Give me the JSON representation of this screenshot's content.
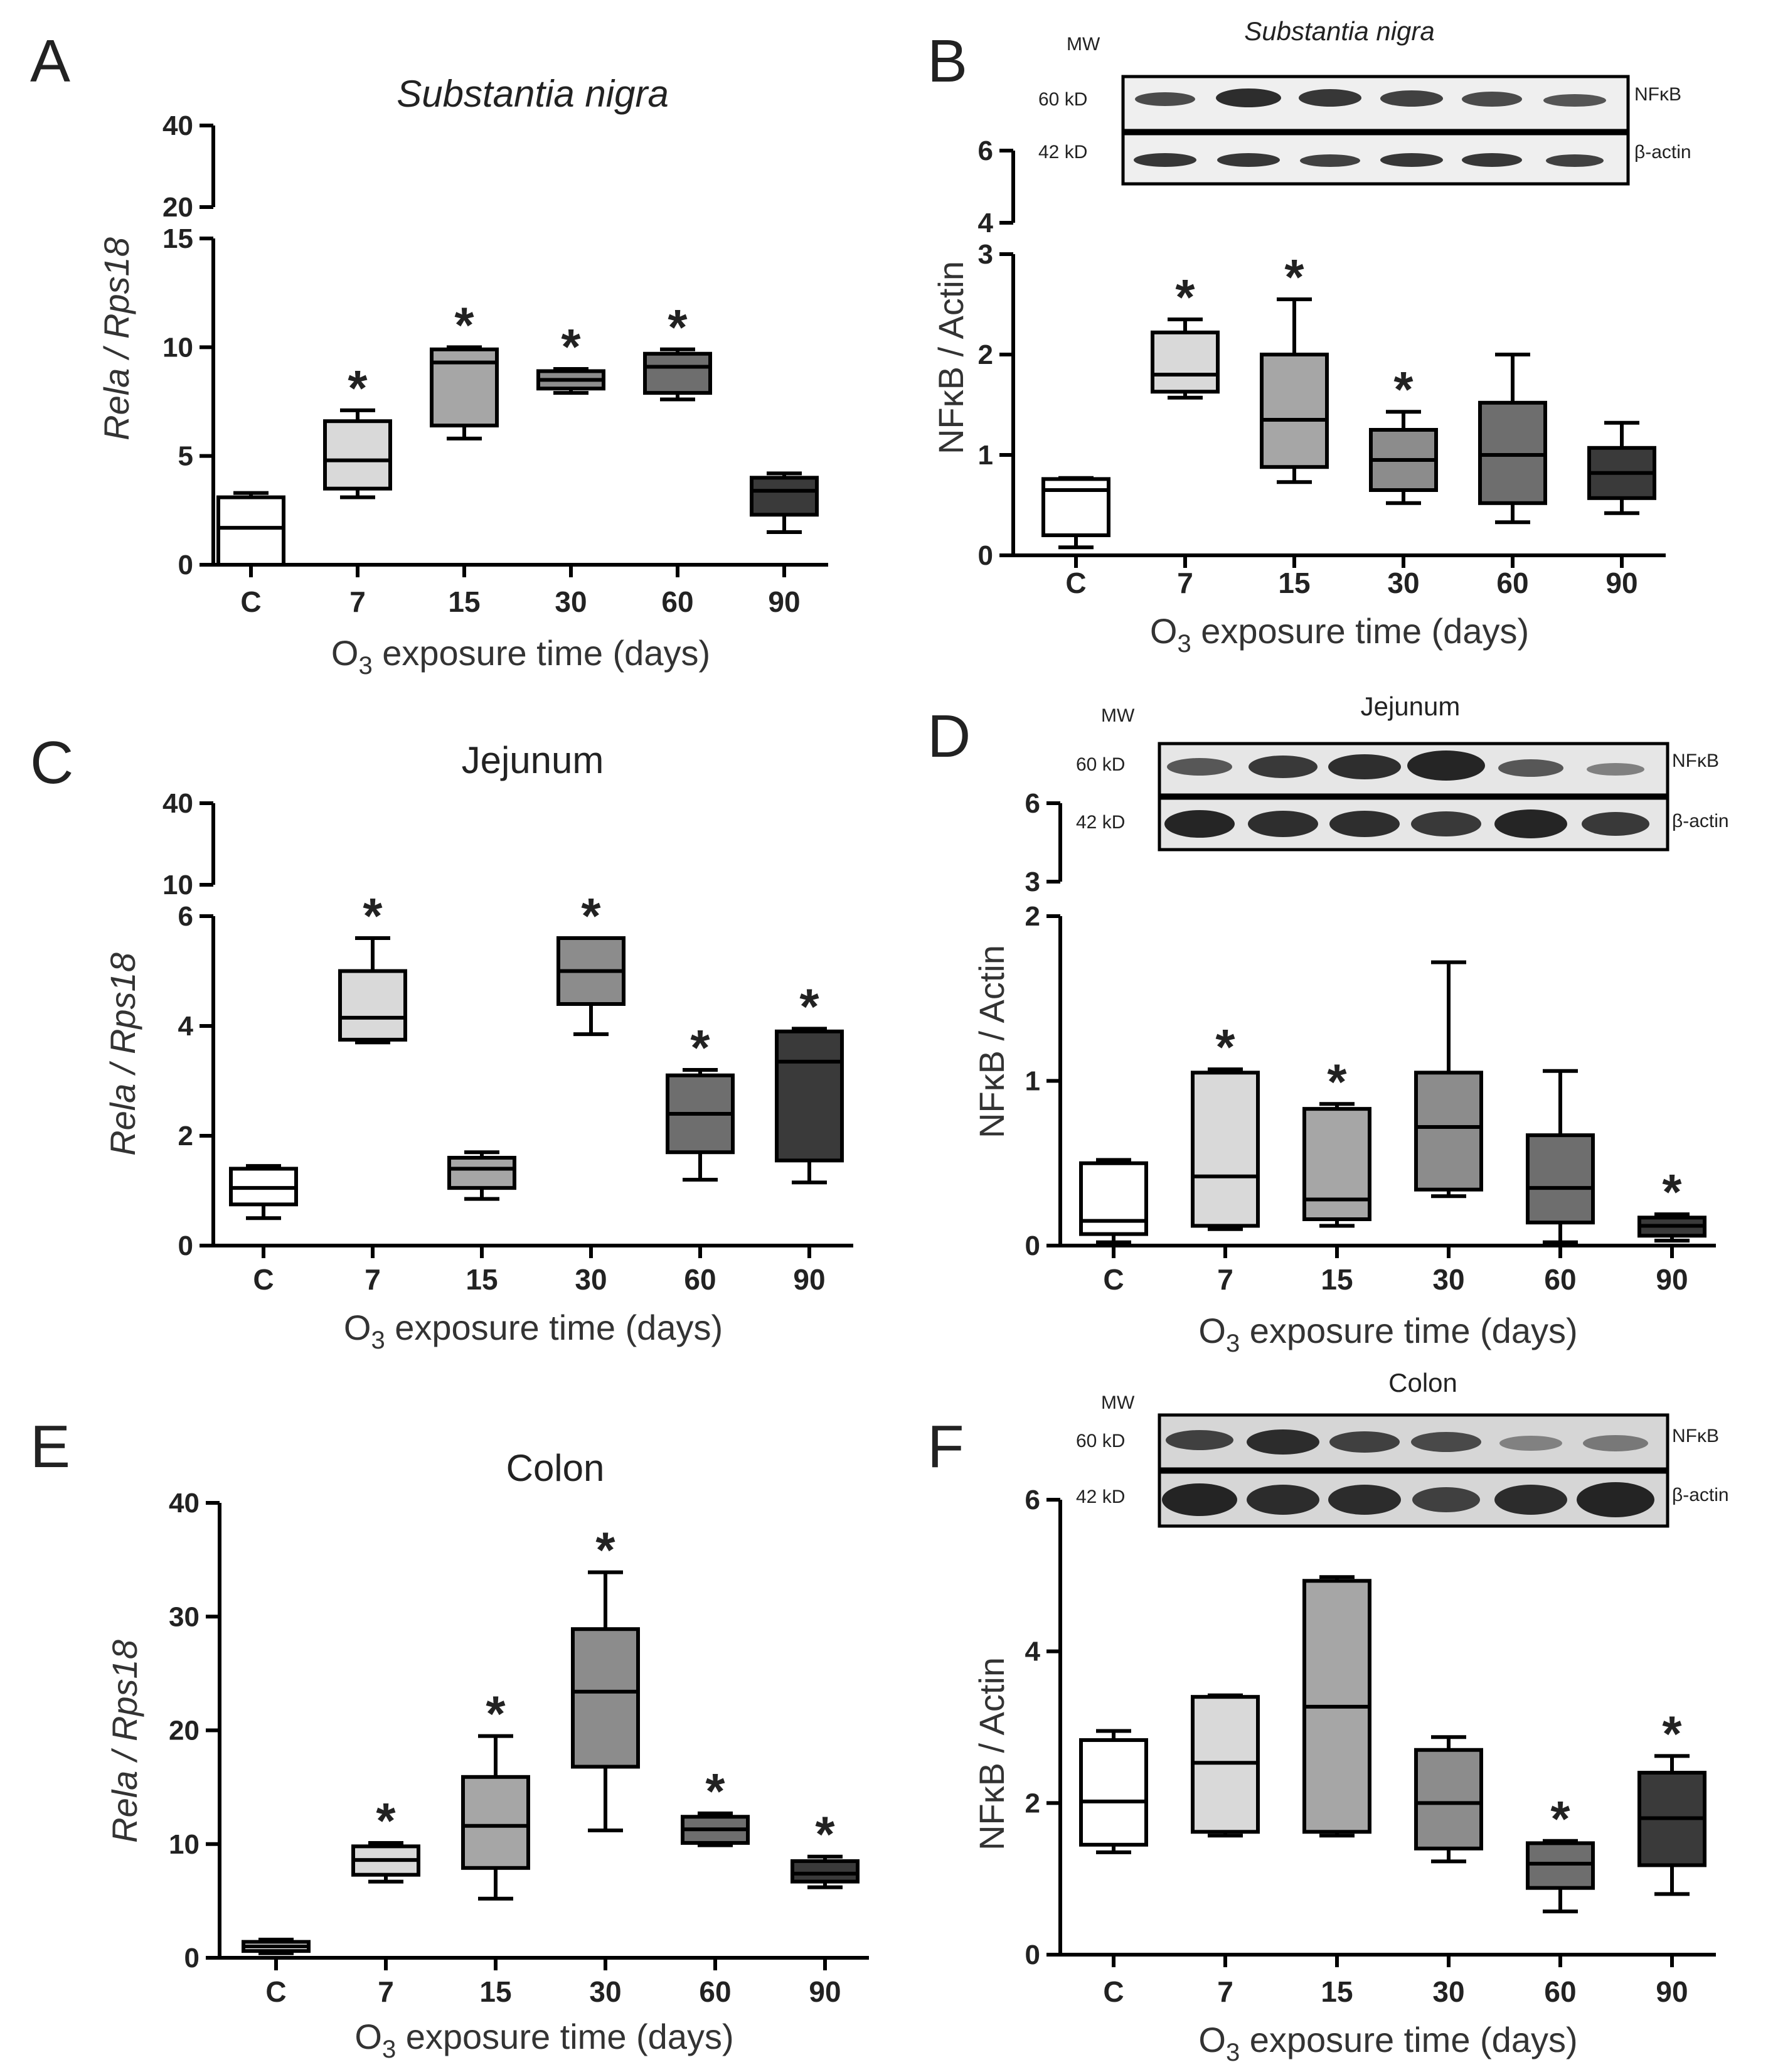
{
  "figure": {
    "panels": [
      {
        "letter": "A",
        "title": "Substantia nigra"
      },
      {
        "letter": "B",
        "title": "Substantia nigra"
      },
      {
        "letter": "C",
        "title": "Jejunum"
      },
      {
        "letter": "D",
        "title": "Jejunum"
      },
      {
        "letter": "E",
        "title": "Colon"
      },
      {
        "letter": "F",
        "title": "Colon"
      }
    ],
    "blot_labels": {
      "mw": "MW",
      "kd60": "60 kD",
      "kd42": "42 kD",
      "nfkb": "NFκB",
      "actin": "β-actin"
    },
    "axis_labels": {
      "x": "O3 exposure time (days)",
      "y_left": "Rela / Rps18",
      "y_right": "NFκB / Actin"
    },
    "box_colors": [
      "#ffffff",
      "#d9d9d9",
      "#a6a6a6",
      "#8c8c8c",
      "#6e6e6e",
      "#3a3a3a"
    ]
  },
  "chart_data": [
    {
      "panel": "A",
      "type": "box",
      "title": "Substantia nigra",
      "xlabel": "O3 exposure time (days)",
      "ylabel": "Rela / Rps18",
      "categories": [
        "C",
        "7",
        "15",
        "30",
        "60",
        "90"
      ],
      "y_lower": {
        "range": [
          0,
          15
        ],
        "ticks": [
          0,
          5,
          10,
          15
        ]
      },
      "y_upper": {
        "range": [
          20,
          40
        ],
        "ticks": [
          20,
          40
        ]
      },
      "boxes": [
        {
          "min": 0,
          "q1": 0,
          "median": 1.7,
          "q3": 3.1,
          "max": 3.3
        },
        {
          "min": 3.1,
          "q1": 3.5,
          "median": 4.8,
          "q3": 6.6,
          "max": 7.1
        },
        {
          "min": 5.8,
          "q1": 6.4,
          "median": 9.3,
          "q3": 9.9,
          "max": 10
        },
        {
          "min": 7.9,
          "q1": 8.1,
          "median": 8.5,
          "q3": 8.9,
          "max": 9
        },
        {
          "min": 7.6,
          "q1": 7.9,
          "median": 9.1,
          "q3": 9.7,
          "max": 9.9
        },
        {
          "min": 1.5,
          "q1": 2.3,
          "median": 3.4,
          "q3": 4.0,
          "max": 4.2
        }
      ],
      "significant": [
        false,
        true,
        true,
        true,
        true,
        false
      ]
    },
    {
      "panel": "B",
      "type": "box",
      "title": "Substantia nigra",
      "xlabel": "O3 exposure time (days)",
      "ylabel": "NFκB / Actin",
      "categories": [
        "C",
        "7",
        "15",
        "30",
        "60",
        "90"
      ],
      "y_lower": {
        "range": [
          0,
          3
        ],
        "ticks": [
          0,
          1,
          2,
          3
        ]
      },
      "y_upper": {
        "range": [
          4,
          6
        ],
        "ticks": [
          4,
          6
        ]
      },
      "boxes": [
        {
          "min": 0.08,
          "q1": 0.2,
          "median": 0.65,
          "q3": 0.76,
          "max": 0.77
        },
        {
          "min": 1.57,
          "q1": 1.63,
          "median": 1.8,
          "q3": 2.22,
          "max": 2.35
        },
        {
          "min": 0.73,
          "q1": 0.88,
          "median": 1.35,
          "q3": 2.0,
          "max": 2.55
        },
        {
          "min": 0.52,
          "q1": 0.65,
          "median": 0.95,
          "q3": 1.25,
          "max": 1.43
        },
        {
          "min": 0.33,
          "q1": 0.52,
          "median": 1.0,
          "q3": 1.52,
          "max": 2.0
        },
        {
          "min": 0.42,
          "q1": 0.57,
          "median": 0.82,
          "q3": 1.07,
          "max": 1.32
        }
      ],
      "significant": [
        false,
        true,
        true,
        true,
        false,
        false
      ]
    },
    {
      "panel": "C",
      "type": "box",
      "title": "Jejunum",
      "xlabel": "O3 exposure time (days)",
      "ylabel": "Rela / Rps18",
      "categories": [
        "C",
        "7",
        "15",
        "30",
        "60",
        "90"
      ],
      "y_lower": {
        "range": [
          0,
          6
        ],
        "ticks": [
          0,
          2,
          4,
          6
        ]
      },
      "y_upper": {
        "range": [
          10,
          40
        ],
        "ticks": [
          10,
          40
        ]
      },
      "boxes": [
        {
          "min": 0.5,
          "q1": 0.75,
          "median": 1.05,
          "q3": 1.4,
          "max": 1.45
        },
        {
          "min": 3.7,
          "q1": 3.75,
          "median": 4.15,
          "q3": 5.0,
          "max": 5.6
        },
        {
          "min": 0.85,
          "q1": 1.05,
          "median": 1.4,
          "q3": 1.6,
          "max": 1.7
        },
        {
          "min": 3.85,
          "q1": 4.4,
          "median": 5.0,
          "q3": 5.6,
          "max": 5.6
        },
        {
          "min": 1.2,
          "q1": 1.7,
          "median": 2.4,
          "q3": 3.1,
          "max": 3.2
        },
        {
          "min": 1.15,
          "q1": 1.55,
          "median": 3.35,
          "q3": 3.9,
          "max": 3.95
        }
      ],
      "significant": [
        false,
        true,
        false,
        true,
        true,
        true
      ]
    },
    {
      "panel": "D",
      "type": "box",
      "title": "Jejunum",
      "xlabel": "O3 exposure time (days)",
      "ylabel": "NFκB / Actin",
      "categories": [
        "C",
        "7",
        "15",
        "30",
        "60",
        "90"
      ],
      "y_lower": {
        "range": [
          0,
          2
        ],
        "ticks": [
          0,
          1,
          2
        ]
      },
      "y_upper": {
        "range": [
          3,
          6
        ],
        "ticks": [
          3,
          6
        ]
      },
      "boxes": [
        {
          "min": 0.02,
          "q1": 0.07,
          "median": 0.15,
          "q3": 0.5,
          "max": 0.52
        },
        {
          "min": 0.1,
          "q1": 0.12,
          "median": 0.42,
          "q3": 1.05,
          "max": 1.07
        },
        {
          "min": 0.12,
          "q1": 0.16,
          "median": 0.28,
          "q3": 0.83,
          "max": 0.86
        },
        {
          "min": 0.3,
          "q1": 0.34,
          "median": 0.72,
          "q3": 1.05,
          "max": 1.72
        },
        {
          "min": 0.02,
          "q1": 0.14,
          "median": 0.35,
          "q3": 0.67,
          "max": 1.06
        },
        {
          "min": 0.03,
          "q1": 0.06,
          "median": 0.12,
          "q3": 0.17,
          "max": 0.19
        }
      ],
      "significant": [
        false,
        true,
        true,
        false,
        false,
        true
      ]
    },
    {
      "panel": "E",
      "type": "box",
      "title": "Colon",
      "xlabel": "O3 exposure time (days)",
      "ylabel": "Rela / Rps18",
      "categories": [
        "C",
        "7",
        "15",
        "30",
        "60",
        "90"
      ],
      "y_lower": {
        "range": [
          0,
          40
        ],
        "ticks": [
          0,
          10,
          20,
          30,
          40
        ]
      },
      "boxes": [
        {
          "min": 0.4,
          "q1": 0.6,
          "median": 1.0,
          "q3": 1.4,
          "max": 1.6
        },
        {
          "min": 6.7,
          "q1": 7.3,
          "median": 8.6,
          "q3": 9.8,
          "max": 10.1
        },
        {
          "min": 5.2,
          "q1": 7.9,
          "median": 11.6,
          "q3": 15.9,
          "max": 19.5
        },
        {
          "min": 11.2,
          "q1": 16.8,
          "median": 23.4,
          "q3": 28.9,
          "max": 33.9
        },
        {
          "min": 9.9,
          "q1": 10.1,
          "median": 11.3,
          "q3": 12.4,
          "max": 12.7
        },
        {
          "min": 6.2,
          "q1": 6.7,
          "median": 7.4,
          "q3": 8.5,
          "max": 8.9
        }
      ],
      "significant": [
        false,
        true,
        true,
        true,
        true,
        true
      ]
    },
    {
      "panel": "F",
      "type": "box",
      "title": "Colon",
      "xlabel": "O3 exposure time (days)",
      "ylabel": "NFκB / Actin",
      "categories": [
        "C",
        "7",
        "15",
        "30",
        "60",
        "90"
      ],
      "y_lower": {
        "range": [
          0,
          6
        ],
        "ticks": [
          0,
          2,
          4,
          6
        ]
      },
      "boxes": [
        {
          "min": 1.35,
          "q1": 1.45,
          "median": 2.02,
          "q3": 2.83,
          "max": 2.95
        },
        {
          "min": 1.57,
          "q1": 1.62,
          "median": 2.53,
          "q3": 3.4,
          "max": 3.42
        },
        {
          "min": 1.57,
          "q1": 1.62,
          "median": 3.27,
          "q3": 4.93,
          "max": 4.98
        },
        {
          "min": 1.23,
          "q1": 1.4,
          "median": 2.0,
          "q3": 2.7,
          "max": 2.87
        },
        {
          "min": 0.57,
          "q1": 0.88,
          "median": 1.2,
          "q3": 1.47,
          "max": 1.5
        },
        {
          "min": 0.8,
          "q1": 1.18,
          "median": 1.8,
          "q3": 2.4,
          "max": 2.62
        }
      ],
      "significant": [
        false,
        false,
        false,
        false,
        true,
        true
      ]
    }
  ]
}
